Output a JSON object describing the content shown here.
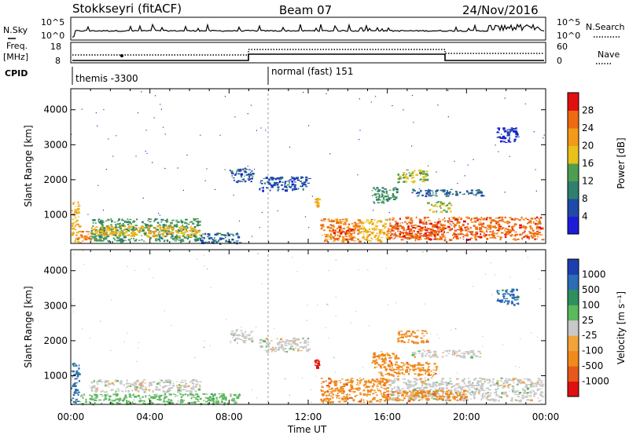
{
  "header": {
    "radar": "Stokkseyri (fitACF)",
    "beam": "Beam 07",
    "date": "24/Nov/2016"
  },
  "params": {
    "nsky_label": "N.Sky",
    "nsky_ticks": [
      "10^5",
      "10^0"
    ],
    "nsearch_label": "N.Search",
    "nsearch_ticks": [
      "10^5",
      "10^0"
    ],
    "freq_label_line1": "Freq.",
    "freq_label_line2": "[MHz]",
    "freq_ticks": [
      "18",
      "8"
    ],
    "nave_label": "Nave",
    "nave_ticks": [
      "60",
      "0"
    ],
    "cpid_label": "CPID",
    "cpid_programs": [
      {
        "name": "themis -3300",
        "start_hour": 0
      },
      {
        "name": "normal (fast) 151",
        "start_hour": 9.95
      }
    ]
  },
  "colors": {
    "power": [
      "#1c1cd8",
      "#1e4aa8",
      "#2f7f6f",
      "#4f9d4f",
      "#e8c21a",
      "#f39a18",
      "#ee6a12",
      "#e01010"
    ],
    "velocity": [
      "#1c3fb0",
      "#2c6db5",
      "#2e8f5e",
      "#5cb85c",
      "#c8c8c8",
      "#f2a33a",
      "#f08a1c",
      "#e8581a",
      "#e01010"
    ]
  },
  "chart_data": [
    {
      "type": "heatmap",
      "name": "power",
      "ylabel": "Slant Range [km]",
      "xlim": [
        0,
        24
      ],
      "ylim": [
        180,
        4600
      ],
      "yticks": [
        "1000",
        "2000",
        "3000",
        "4000"
      ],
      "colorbar_label": "Power [dB]",
      "colorbar_ticks": [
        "4",
        "8",
        "12",
        "16",
        "20",
        "24",
        "28"
      ],
      "regions": [
        {
          "x0": 0.0,
          "x1": 0.4,
          "y0": 200,
          "y1": 1400,
          "v": 20
        },
        {
          "x0": 0.3,
          "x1": 1.0,
          "y0": 200,
          "y1": 550,
          "v": 24
        },
        {
          "x0": 1.0,
          "x1": 6.5,
          "y0": 250,
          "y1": 900,
          "v": 12
        },
        {
          "x0": 1.0,
          "x1": 6.5,
          "y0": 400,
          "y1": 700,
          "v": 20
        },
        {
          "x0": 6.5,
          "x1": 8.5,
          "y0": 200,
          "y1": 500,
          "v": 8
        },
        {
          "x0": 8.0,
          "x1": 9.2,
          "y0": 1950,
          "y1": 2350,
          "v": 6
        },
        {
          "x0": 9.5,
          "x1": 12.0,
          "y0": 1700,
          "y1": 2100,
          "v": 6
        },
        {
          "x0": 12.3,
          "x1": 12.5,
          "y0": 1250,
          "y1": 1500,
          "v": 20
        },
        {
          "x0": 12.6,
          "x1": 14.6,
          "y0": 250,
          "y1": 900,
          "v": 24
        },
        {
          "x0": 13.2,
          "x1": 14.2,
          "y0": 300,
          "y1": 650,
          "v": 28
        },
        {
          "x0": 14.6,
          "x1": 16.0,
          "y0": 250,
          "y1": 900,
          "v": 20
        },
        {
          "x0": 16.0,
          "x1": 23.8,
          "y0": 300,
          "y1": 950,
          "v": 26
        },
        {
          "x0": 16.6,
          "x1": 18.8,
          "y0": 350,
          "y1": 700,
          "v": 28
        },
        {
          "x0": 15.2,
          "x1": 16.5,
          "y0": 1350,
          "y1": 1800,
          "v": 12
        },
        {
          "x0": 16.5,
          "x1": 18.0,
          "y0": 1950,
          "y1": 2300,
          "v": 16
        },
        {
          "x0": 17.2,
          "x1": 20.8,
          "y0": 1550,
          "y1": 1750,
          "v": 8
        },
        {
          "x0": 18.0,
          "x1": 19.2,
          "y0": 1100,
          "y1": 1400,
          "v": 16
        },
        {
          "x0": 21.5,
          "x1": 22.6,
          "y0": 3050,
          "y1": 3500,
          "v": 4
        }
      ]
    },
    {
      "type": "heatmap",
      "name": "velocity",
      "ylabel": "Slant Range [km]",
      "xlim": [
        0,
        24
      ],
      "ylim": [
        180,
        4600
      ],
      "yticks": [
        "1000",
        "2000",
        "3000",
        "4000"
      ],
      "xticks": [
        "00:00",
        "04:00",
        "08:00",
        "12:00",
        "16:00",
        "20:00",
        "00:00"
      ],
      "xlabel": "Time UT",
      "colorbar_label": "Velocity [m s⁻¹]",
      "colorbar_ticks": [
        "1000",
        "500",
        "100",
        "25",
        "-25",
        "-100",
        "-500",
        "-1000"
      ],
      "regions": [
        {
          "x0": 0.0,
          "x1": 0.4,
          "y0": 200,
          "y1": 1400,
          "v": 1
        },
        {
          "x0": 1.0,
          "x1": 6.5,
          "y0": 550,
          "y1": 900,
          "v": 4
        },
        {
          "x0": 0.4,
          "x1": 8.5,
          "y0": 200,
          "y1": 500,
          "v": 3
        },
        {
          "x0": 8.0,
          "x1": 9.2,
          "y0": 1950,
          "y1": 2350,
          "v": 4
        },
        {
          "x0": 9.5,
          "x1": 12.0,
          "y0": 1700,
          "y1": 2100,
          "v": 4
        },
        {
          "x0": 12.3,
          "x1": 12.5,
          "y0": 1250,
          "y1": 1500,
          "v": 8
        },
        {
          "x0": 12.6,
          "x1": 16.0,
          "y0": 250,
          "y1": 950,
          "v": 6
        },
        {
          "x0": 16.0,
          "x1": 23.8,
          "y0": 300,
          "y1": 950,
          "v": 4
        },
        {
          "x0": 16.0,
          "x1": 20.0,
          "y0": 300,
          "y1": 600,
          "v": 6
        },
        {
          "x0": 15.2,
          "x1": 16.5,
          "y0": 1250,
          "y1": 1700,
          "v": 6
        },
        {
          "x0": 16.5,
          "x1": 18.0,
          "y0": 1950,
          "y1": 2300,
          "v": 6
        },
        {
          "x0": 17.2,
          "x1": 20.8,
          "y0": 1550,
          "y1": 1750,
          "v": 4
        },
        {
          "x0": 15.5,
          "x1": 18.5,
          "y0": 1000,
          "y1": 1400,
          "v": 6
        },
        {
          "x0": 21.5,
          "x1": 22.6,
          "y0": 3050,
          "y1": 3500,
          "v": 1
        }
      ]
    }
  ]
}
